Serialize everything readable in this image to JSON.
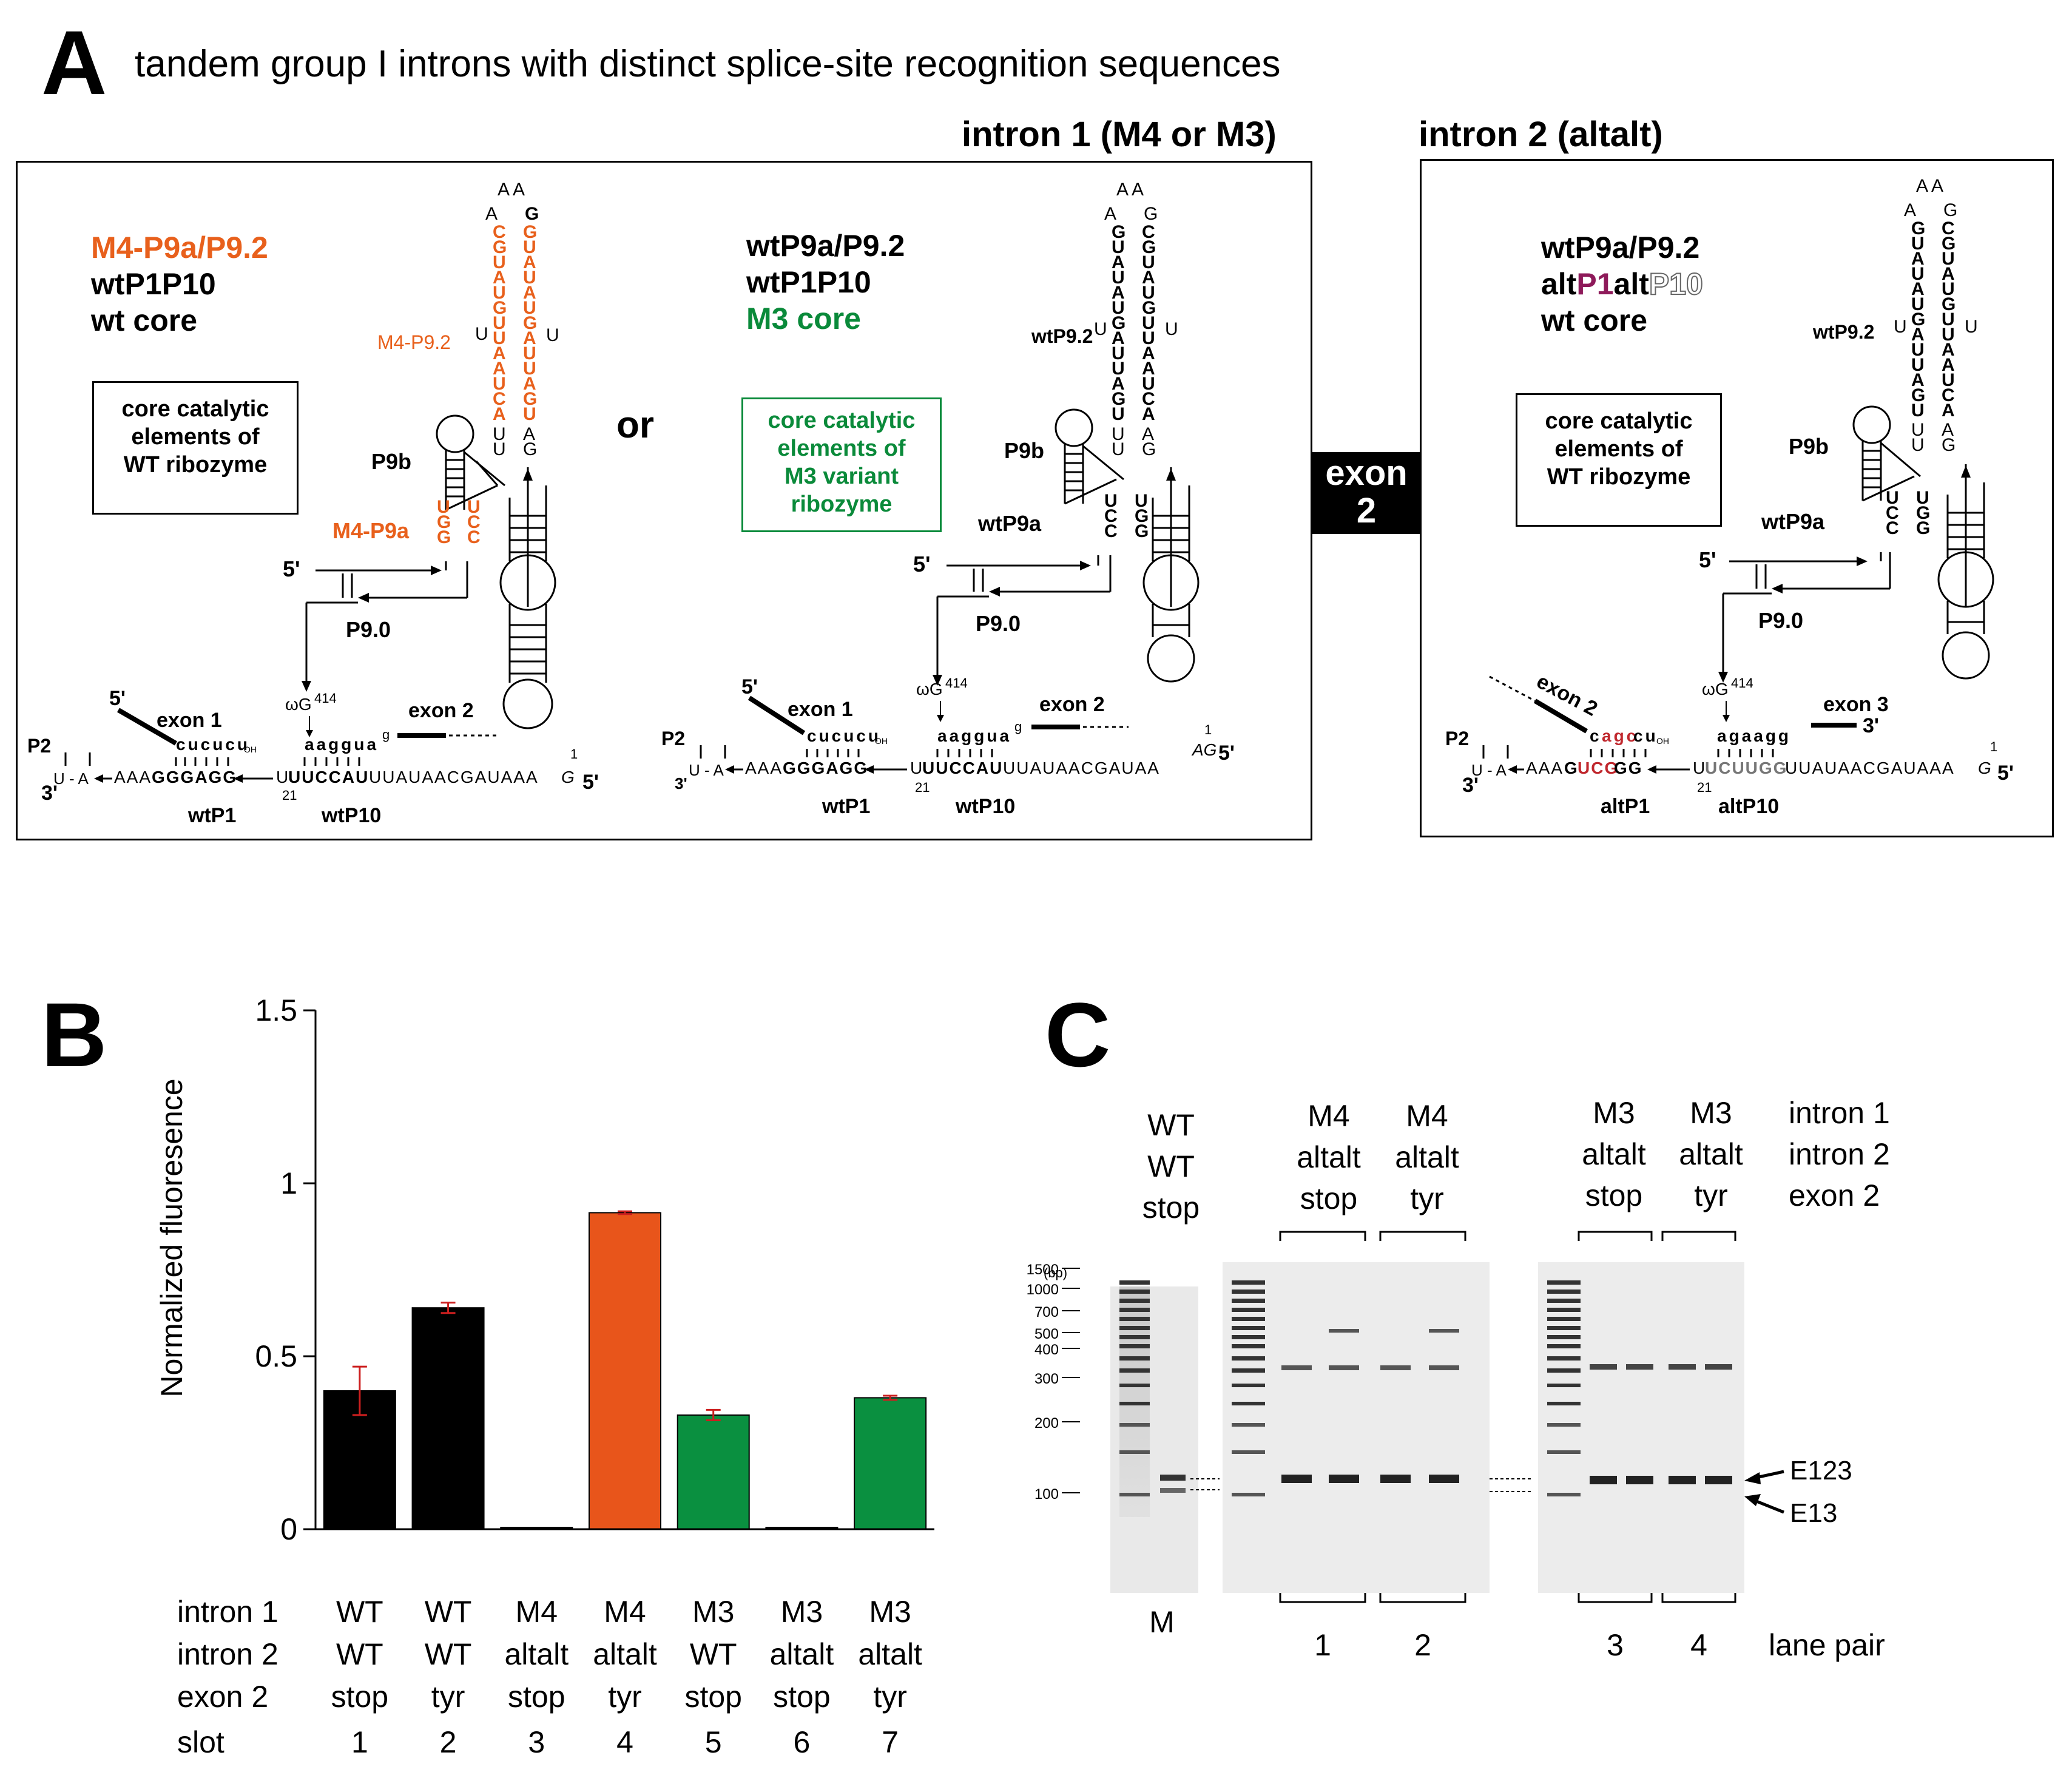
{
  "panel_a": {
    "letter": "A",
    "title": "tandem group I introns with distinct splice-site recognition sequences",
    "intron1_header": "intron 1 (M4 or M3)",
    "intron2_header": "intron 2 (altalt)",
    "or_label": "or",
    "exon2_block": {
      "line1": "exon",
      "line2": "2"
    },
    "m4": {
      "label1": "M4-P9a/P9.2",
      "label2": "wtP1P10",
      "label3": "wt core",
      "core_box": [
        "core catalytic",
        "elements of",
        "WT ribozyme"
      ],
      "p92_label": "M4-P9.2",
      "p9a_label": "M4-P9a",
      "p9b_label": "P9b",
      "p90_label": "P9.0",
      "five_prime": "5'",
      "exon1": "exon 1",
      "exon2": "exon 2",
      "p1_label": "wtP1",
      "p10_label": "wtP10",
      "p2_label": "P2",
      "three_prime": "3'",
      "omega": "ωG",
      "omega_num": "414",
      "seq_top": "cucucu",
      "oh": "OH",
      "seq_exon2": "aaggua",
      "g_small": "g",
      "seq_bottom_a": "AAA",
      "seq_bottom_b": "GGGAGG",
      "seq_bottom_c": "U",
      "seq_bottom_d": "UUCCAU",
      "seq_bottom_e": "UUAUAACGAUAAA",
      "seq_bottom_f": "G",
      "num21": "21",
      "num1": "1",
      "ua": "U - A"
    },
    "m3": {
      "label1": "wtP9a/P9.2",
      "label2": "wtP1P10",
      "label3": "M3 core",
      "core_box": [
        "core catalytic",
        "elements of",
        "M3 variant",
        "ribozyme"
      ],
      "p92_label": "wtP9.2",
      "p9a_label": "wtP9a",
      "p9b_label": "P9b",
      "p90_label": "P9.0",
      "five_prime": "5'",
      "exon1": "exon 1",
      "exon2": "exon 2",
      "p1_label": "wtP1",
      "p10_label": "wtP10",
      "p2_label": "P2",
      "three_prime": "3'",
      "omega": "ωG",
      "omega_num": "414",
      "seq_top": "cucucu",
      "oh": "OH",
      "seq_exon2": "aaggua",
      "g_small": "g",
      "seq_bottom_a": "AAA",
      "seq_bottom_b": "GGGAGG",
      "seq_bottom_c": "U",
      "seq_bottom_d": "UUCCAU",
      "seq_bottom_e": "UUAUAACGAUAA",
      "seq_bottom_f": "AG",
      "num21": "21",
      "num1": "1",
      "ua": "U - A"
    },
    "altalt": {
      "label1": "wtP9a/P9.2",
      "label2_a": "alt",
      "label2_b": "P1",
      "label2_c": "alt",
      "label2_d": "P10",
      "label3": "wt core",
      "core_box": [
        "core catalytic",
        "elements of",
        "WT ribozyme"
      ],
      "p92_label": "wtP9.2",
      "p9a_label": "wtP9a",
      "p9b_label": "P9b",
      "p90_label": "P9.0",
      "five_prime": "5'",
      "exon2": "exon 2",
      "exon3": "exon 3",
      "p1_label": "altP1",
      "p10_label": "altP10",
      "p2_label": "P2",
      "three_prime": "3'",
      "omega": "ωG",
      "omega_num": "414",
      "seq_top_a": "c",
      "seq_top_b": "agc",
      "seq_top_c": "cu",
      "oh": "OH",
      "seq_exon3": "agaagg",
      "seq_bottom_a": "AAA",
      "seq_bottom_b": "G",
      "seq_bottom_c": "UCG",
      "seq_bottom_d": "GG",
      "seq_bottom_e": "U",
      "seq_bottom_f": "UCUUGG",
      "seq_bottom_g": "UUAUAACGAUAAA",
      "seq_bottom_h": "G",
      "num21": "21",
      "num1": "1",
      "ua": "U - A"
    },
    "hairpin": {
      "loop": "A A",
      "a_left": "A",
      "g_right": "G",
      "u_left": "U",
      "u_right": "U",
      "m4_left": [
        "C",
        "G",
        "U",
        "A",
        "U",
        "G",
        "U",
        "U",
        "A",
        "A",
        "U",
        "C",
        "A"
      ],
      "m4_right": [
        "G",
        "U",
        "A",
        "U",
        "A",
        "U",
        "G",
        "A",
        "U",
        "U",
        "A",
        "G",
        "U"
      ],
      "wt_left": [
        "G",
        "U",
        "A",
        "U",
        "A",
        "U",
        "G",
        "A",
        "U",
        "U",
        "A",
        "G",
        "U"
      ],
      "wt_right": [
        "C",
        "G",
        "U",
        "A",
        "U",
        "G",
        "U",
        "U",
        "A",
        "A",
        "U",
        "C",
        "A"
      ],
      "tail_left": [
        "U",
        "U"
      ],
      "tail_right": [
        "A",
        "G"
      ],
      "p9a_m4_left": [
        "U",
        "G",
        "G"
      ],
      "p9a_m4_right": [
        "U",
        "C",
        "C"
      ],
      "p9a_wt_left": [
        "U",
        "C",
        "C"
      ],
      "p9a_wt_right": [
        "U",
        "G",
        "G"
      ]
    }
  },
  "panel_b": {
    "letter": "B",
    "chart_data": {
      "type": "bar",
      "ylabel": "Normalized fluoresence",
      "ylim": [
        0,
        1.5
      ],
      "yticks": [
        "0",
        "0.5",
        "1",
        "1.5"
      ],
      "categories": [
        "1",
        "2",
        "3",
        "4",
        "5",
        "6",
        "7"
      ],
      "values": [
        0.4,
        0.64,
        0.005,
        0.915,
        0.33,
        0.005,
        0.38
      ],
      "errors": [
        0.07,
        0.015,
        0.0,
        0.004,
        0.015,
        0.0,
        0.006
      ],
      "colors": [
        "#000000",
        "#000000",
        "#000000",
        "#e8551b",
        "#0a9040",
        "#000000",
        "#0a9040"
      ],
      "error_color": "#cc1f1f",
      "row_labels": [
        "intron 1",
        "intron 2",
        "exon 2",
        "slot"
      ],
      "intron1": [
        "WT",
        "WT",
        "M4",
        "M4",
        "M3",
        "M3",
        "M3"
      ],
      "intron2": [
        "WT",
        "WT",
        "altalt",
        "altalt",
        "WT",
        "altalt",
        "altalt"
      ],
      "exon2": [
        "stop",
        "tyr",
        "stop",
        "tyr",
        "stop",
        "stop",
        "tyr"
      ],
      "slot": [
        "1",
        "2",
        "3",
        "4",
        "5",
        "6",
        "7"
      ]
    }
  },
  "panel_c": {
    "letter": "C",
    "group_wt": [
      "WT",
      "WT",
      "stop"
    ],
    "group_1": [
      "M4",
      "altalt",
      "stop"
    ],
    "group_2": [
      "M4",
      "altalt",
      "tyr"
    ],
    "group_3": [
      "M3",
      "altalt",
      "stop"
    ],
    "group_4": [
      "M3",
      "altalt",
      "tyr"
    ],
    "row_key": [
      "intron 1",
      "intron 2",
      "exon 2"
    ],
    "bp_label": "(bp)",
    "ladder": [
      "1500",
      "1000",
      "700",
      "500",
      "400",
      "300",
      "200",
      "100"
    ],
    "marker_label": "M",
    "lane_pairs": [
      "1",
      "2",
      "3",
      "4"
    ],
    "lane_pair_label": "lane pair",
    "band_e123": "E123",
    "band_e13": "E13"
  }
}
